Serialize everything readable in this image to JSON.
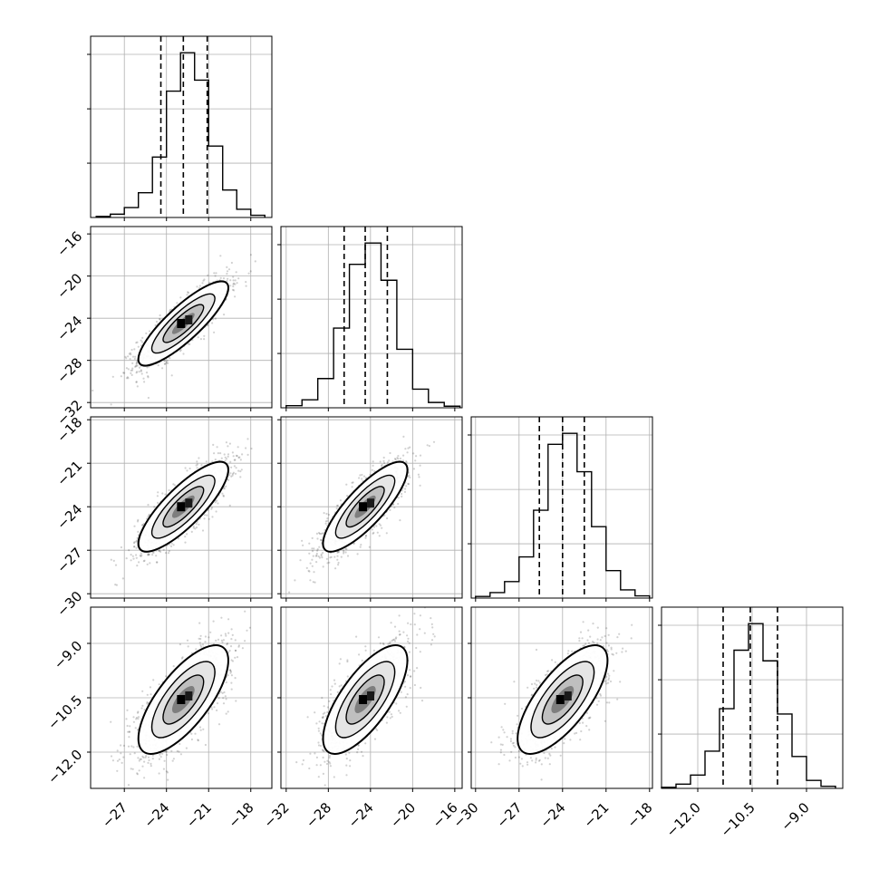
{
  "chart_data": {
    "type": "corner",
    "grid": true,
    "parameters": [
      {
        "ticks": [
          "-27",
          "-24",
          "-21",
          "-18"
        ],
        "tick_values": [
          -27,
          -24,
          -21,
          -18
        ],
        "range": [
          -29.4,
          -16.5
        ],
        "quantiles": [
          -24.4,
          -22.8,
          -21.1
        ],
        "hist_bins": [
          -29.0,
          -28.0,
          -27.0,
          -26.0,
          -25.0,
          -24.0,
          -23.0,
          -22.0,
          -21.0,
          -20.0,
          -19.0,
          -18.0,
          -17.0
        ],
        "hist_counts": [
          2,
          6,
          18,
          45,
          110,
          230,
          300,
          250,
          130,
          50,
          15,
          4
        ]
      },
      {
        "ticks": [
          "-32",
          "-28",
          "-24",
          "-20",
          "-16"
        ],
        "tick_values": [
          -32,
          -28,
          -24,
          -20,
          -16
        ],
        "range": [
          -32.5,
          -15.3
        ],
        "quantiles": [
          -26.5,
          -24.5,
          -22.4
        ],
        "hist_bins": [
          -32.0,
          -30.5,
          -29.0,
          -27.5,
          -26.0,
          -24.5,
          -23.0,
          -21.5,
          -20.0,
          -18.5,
          -17.0,
          -15.5
        ],
        "hist_counts": [
          4,
          15,
          55,
          150,
          270,
          310,
          240,
          110,
          35,
          10,
          3
        ]
      },
      {
        "ticks": [
          "-30",
          "-27",
          "-24",
          "-21",
          "-18"
        ],
        "tick_values": [
          -30,
          -27,
          -24,
          -21,
          -18
        ],
        "range": [
          -30.3,
          -17.8
        ],
        "quantiles": [
          -25.6,
          -24.0,
          -22.5
        ],
        "hist_bins": [
          -30.0,
          -29.0,
          -28.0,
          -27.0,
          -26.0,
          -25.0,
          -24.0,
          -23.0,
          -22.0,
          -21.0,
          -20.0,
          -19.0,
          -18.0
        ],
        "hist_counts": [
          3,
          10,
          30,
          75,
          160,
          280,
          300,
          230,
          130,
          50,
          15,
          4
        ]
      },
      {
        "ticks": [
          "-12.0",
          "-10.5",
          "-9.0"
        ],
        "tick_values": [
          -12.0,
          -10.5,
          -9.0
        ],
        "range": [
          -13.0,
          -8.0
        ],
        "quantiles": [
          -11.3,
          -10.55,
          -9.8
        ],
        "hist_bins": [
          -13.0,
          -12.6,
          -12.2,
          -11.8,
          -11.4,
          -11.0,
          -10.6,
          -10.2,
          -9.8,
          -9.4,
          -9.0,
          -8.6,
          -8.2
        ],
        "hist_counts": [
          2,
          8,
          25,
          70,
          150,
          260,
          310,
          240,
          140,
          60,
          15,
          4
        ]
      }
    ],
    "pairs": [
      {
        "row": 1,
        "col": 0,
        "center": [
          -22.8,
          -24.5
        ],
        "sigma": [
          1.6,
          2.0
        ],
        "rho": 0.85
      },
      {
        "row": 2,
        "col": 0,
        "center": [
          -22.8,
          -24.0
        ],
        "sigma": [
          1.6,
          1.55
        ],
        "rho": 0.82
      },
      {
        "row": 2,
        "col": 1,
        "center": [
          -24.5,
          -24.0
        ],
        "sigma": [
          2.0,
          1.55
        ],
        "rho": 0.82
      },
      {
        "row": 3,
        "col": 0,
        "center": [
          -22.8,
          -10.55
        ],
        "sigma": [
          1.6,
          0.75
        ],
        "rho": 0.72
      },
      {
        "row": 3,
        "col": 1,
        "center": [
          -24.5,
          -10.55
        ],
        "sigma": [
          2.0,
          0.75
        ],
        "rho": 0.72
      },
      {
        "row": 3,
        "col": 2,
        "center": [
          -24.0,
          -10.55
        ],
        "sigma": [
          1.55,
          0.75
        ],
        "rho": 0.72
      }
    ]
  }
}
